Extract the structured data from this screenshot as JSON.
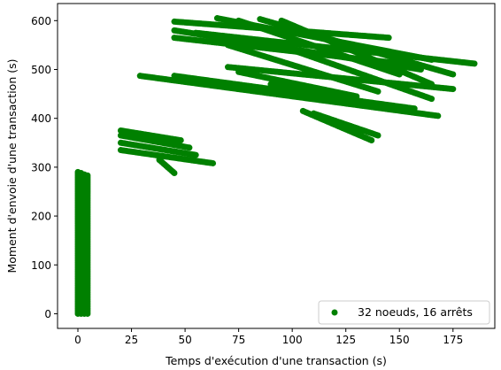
{
  "chart_data": {
    "type": "scatter",
    "title": "",
    "xlabel": "Temps d'exécution d'une transaction (s)",
    "ylabel": "Moment d'envoie d'une transaction (s)",
    "xlim": [
      -9.5,
      194.5
    ],
    "ylim": [
      -30,
      635
    ],
    "xticks": [
      0,
      25,
      50,
      75,
      100,
      125,
      150,
      175
    ],
    "yticks": [
      0,
      100,
      200,
      300,
      400,
      500,
      600
    ],
    "grid": false,
    "legend_position": "bottom-right",
    "series": [
      {
        "name": "32 noeuds, 16 arrêts",
        "color": "#008000",
        "segments": [
          {
            "x0": 0,
            "y0": 0,
            "x1": 0,
            "y1": 290
          },
          {
            "x0": 1.5,
            "y0": 0,
            "x1": 1.5,
            "y1": 288
          },
          {
            "x0": 3,
            "y0": 0,
            "x1": 3,
            "y1": 285
          },
          {
            "x0": 4.5,
            "y0": 0,
            "x1": 4.5,
            "y1": 283
          },
          {
            "x0": 20,
            "y0": 375,
            "x1": 48,
            "y1": 355
          },
          {
            "x0": 20,
            "y0": 365,
            "x1": 52,
            "y1": 340
          },
          {
            "x0": 20,
            "y0": 350,
            "x1": 55,
            "y1": 325
          },
          {
            "x0": 20,
            "y0": 335,
            "x1": 63,
            "y1": 308
          },
          {
            "x0": 38,
            "y0": 315,
            "x1": 45,
            "y1": 288
          },
          {
            "x0": 29,
            "y0": 487,
            "x1": 168,
            "y1": 405
          },
          {
            "x0": 45,
            "y0": 487,
            "x1": 157,
            "y1": 420
          },
          {
            "x0": 70,
            "y0": 505,
            "x1": 175,
            "y1": 460
          },
          {
            "x0": 75,
            "y0": 495,
            "x1": 130,
            "y1": 445
          },
          {
            "x0": 105,
            "y0": 415,
            "x1": 137,
            "y1": 355
          },
          {
            "x0": 110,
            "y0": 410,
            "x1": 140,
            "y1": 365
          },
          {
            "x0": 90,
            "y0": 470,
            "x1": 150,
            "y1": 420
          },
          {
            "x0": 45,
            "y0": 598,
            "x1": 145,
            "y1": 565
          },
          {
            "x0": 45,
            "y0": 580,
            "x1": 160,
            "y1": 500
          },
          {
            "x0": 45,
            "y0": 565,
            "x1": 155,
            "y1": 510
          },
          {
            "x0": 55,
            "y0": 575,
            "x1": 185,
            "y1": 512
          },
          {
            "x0": 65,
            "y0": 605,
            "x1": 165,
            "y1": 520
          },
          {
            "x0": 75,
            "y0": 600,
            "x1": 150,
            "y1": 490
          },
          {
            "x0": 85,
            "y0": 603,
            "x1": 175,
            "y1": 490
          },
          {
            "x0": 95,
            "y0": 600,
            "x1": 165,
            "y1": 470
          },
          {
            "x0": 70,
            "y0": 550,
            "x1": 140,
            "y1": 455
          },
          {
            "x0": 100,
            "y0": 540,
            "x1": 165,
            "y1": 440
          }
        ]
      }
    ]
  }
}
